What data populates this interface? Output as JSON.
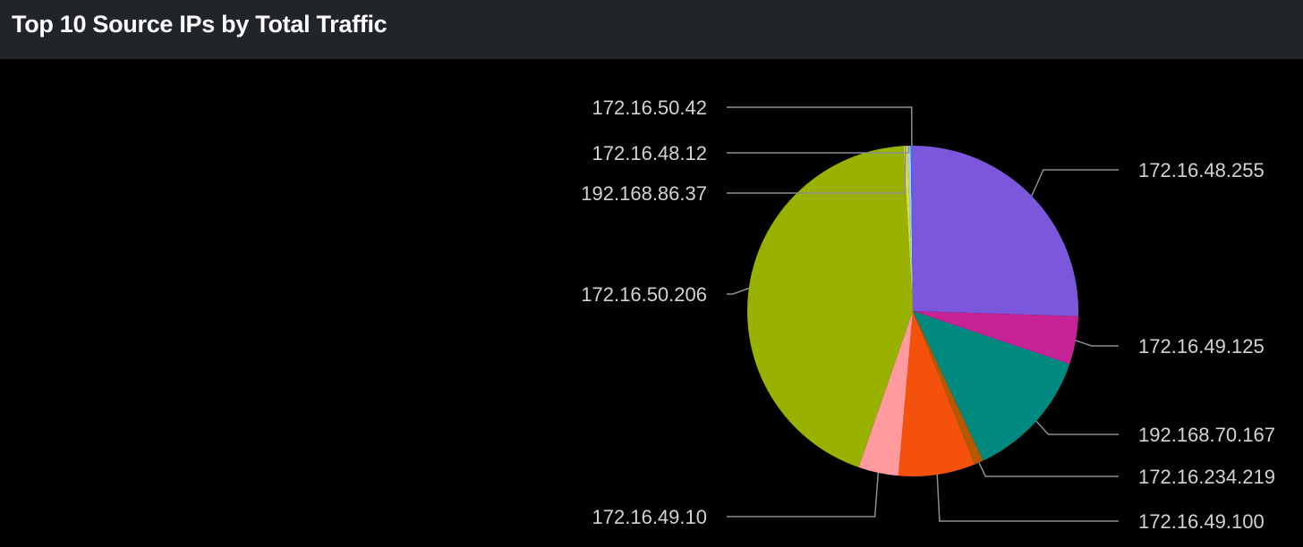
{
  "panel": {
    "title": "Top 10 Source IPs by Total Traffic"
  },
  "chart_data": {
    "type": "pie",
    "title": "Top 10 Source IPs by Total Traffic",
    "slices": [
      {
        "label": "172.16.48.255",
        "value": 25.5,
        "color": "#7b57db"
      },
      {
        "label": "172.16.49.125",
        "value": 4.7,
        "color": "#c62496"
      },
      {
        "label": "192.168.70.167",
        "value": 12.8,
        "color": "#00897e"
      },
      {
        "label": "172.16.234.219",
        "value": 0.9,
        "color": "#b35a00"
      },
      {
        "label": "172.16.49.100",
        "value": 7.5,
        "color": "#f4510c"
      },
      {
        "label": "172.16.49.10",
        "value": 3.9,
        "color": "#ff9a9e"
      },
      {
        "label": "172.16.50.206",
        "value": 43.8,
        "color": "#99b200"
      },
      {
        "label": "192.168.86.37",
        "value": 0.4,
        "color": "#d6e03d"
      },
      {
        "label": "172.16.48.12",
        "value": 0.3,
        "color": "#b7c6f2"
      },
      {
        "label": "172.16.50.42",
        "value": 0.2,
        "color": "#3c6ef0"
      }
    ],
    "legend": "none"
  }
}
